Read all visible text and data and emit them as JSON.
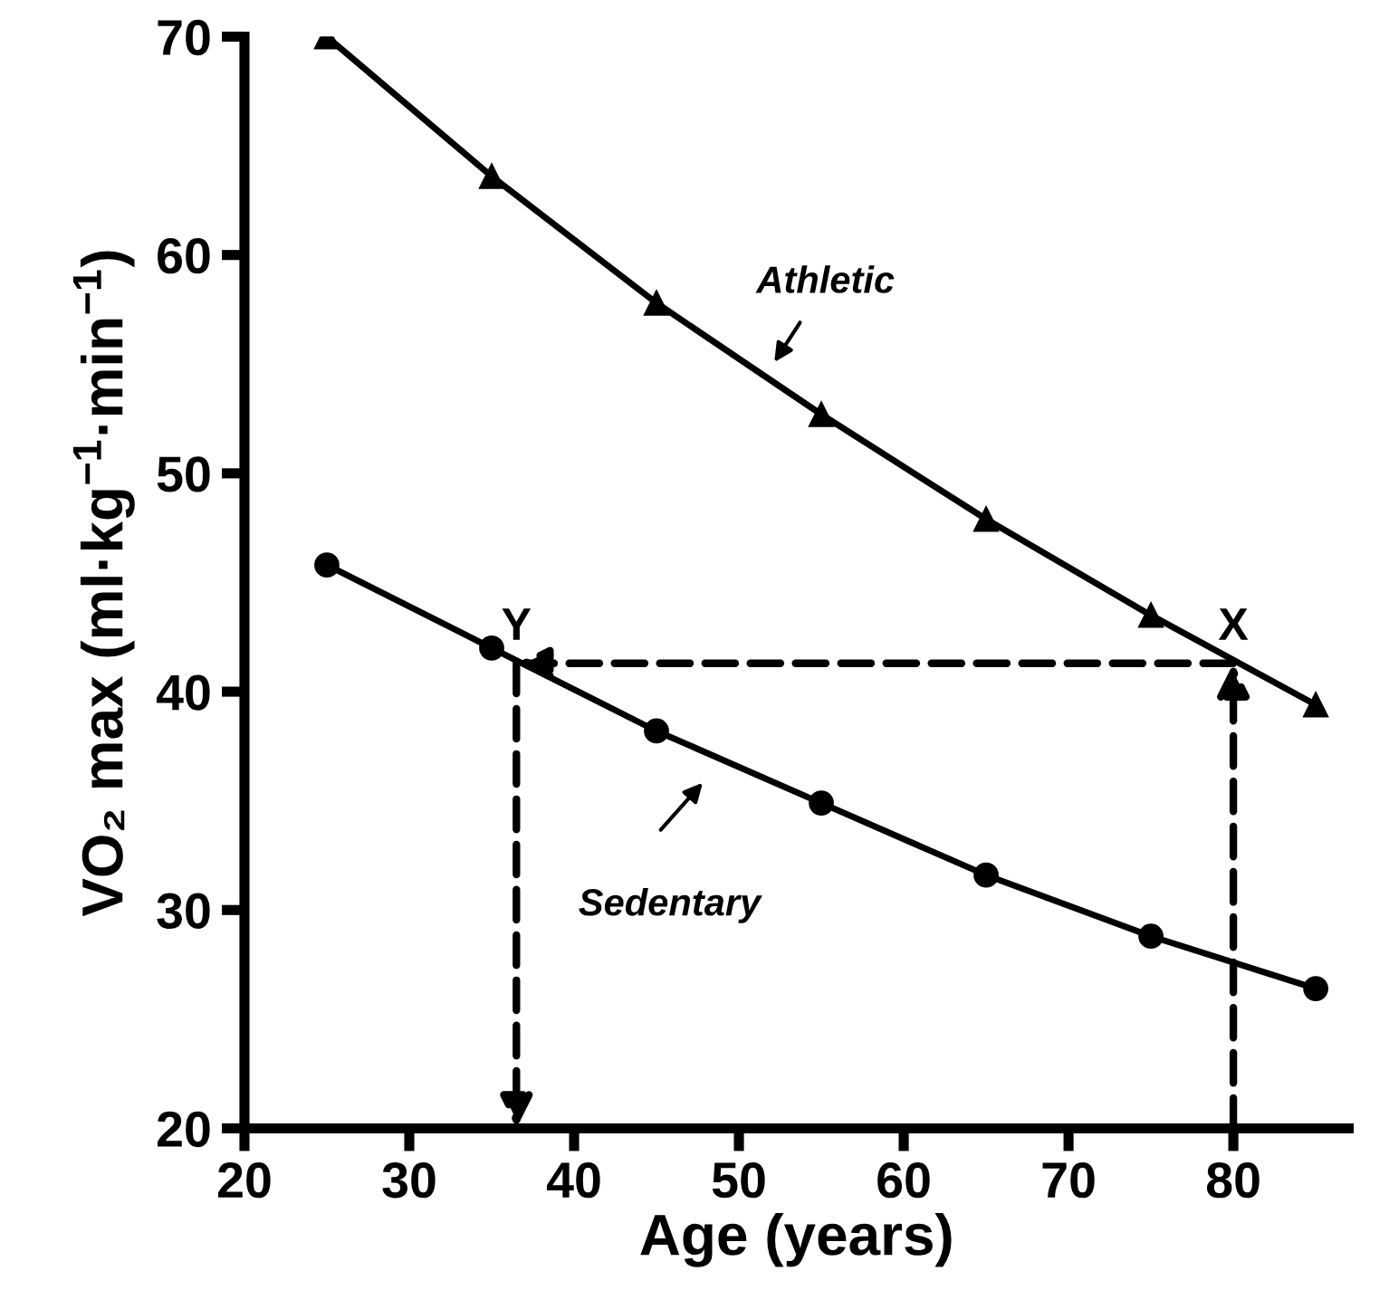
{
  "chart_data": {
    "type": "line",
    "xlabel": "Age (years)",
    "ylabel": "VO₂ max (ml·kg$^{−1}$·min$^{−1}$)",
    "x": [
      25,
      35,
      45,
      55,
      65,
      75,
      85
    ],
    "series": [
      {
        "color": "#000000",
        "marker": "triangle",
        "values": [
          70,
          63.6,
          57.8,
          52.7,
          47.9,
          43.5,
          39.4
        ]
      },
      {
        "color": "#000000",
        "marker": "circle",
        "values": [
          45.8,
          42.0,
          38.2,
          34.9,
          31.6,
          28.8,
          26.4
        ]
      }
    ],
    "xlim": [
      20,
      87
    ],
    "ylim": [
      20,
      70
    ],
    "xticks": [
      20,
      30,
      40,
      50,
      60,
      70,
      80
    ],
    "yticks": [
      20,
      30,
      40,
      50,
      60,
      70
    ],
    "grid": false,
    "legend": false,
    "line_style": "solid",
    "annotations": [
      {
        "text": "Athletic",
        "x": 51.9,
        "y": 54.8
      },
      "Sedentary",
      {
        "text": "X",
        "x": 80,
        "y": 41.3
      },
      {
        "text": "Y",
        "x": 36.5,
        "y": 41.3
      }
    ]
  }
}
